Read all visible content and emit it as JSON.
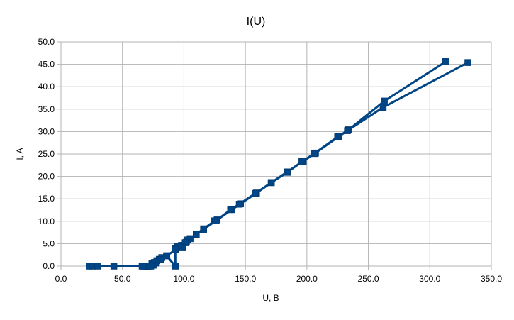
{
  "chart_data": {
    "type": "scatter",
    "title": "I(U)",
    "xlabel": "U, B",
    "ylabel": "I, A",
    "xlim": [
      0,
      350
    ],
    "ylim": [
      0,
      50
    ],
    "x_ticks": [
      "0.0",
      "50.0",
      "100.0",
      "150.0",
      "200.0",
      "250.0",
      "300.0",
      "350.0"
    ],
    "y_ticks": [
      "0.0",
      "5.0",
      "10.0",
      "15.0",
      "20.0",
      "25.0",
      "30.0",
      "35.0",
      "40.0",
      "45.0",
      "50.0"
    ],
    "grid": true,
    "legend": "none",
    "color": "#004586",
    "marker": "square",
    "series": [
      {
        "x": [
          23,
          26,
          30,
          43,
          66,
          68,
          70,
          72,
          74,
          76,
          78,
          80,
          82,
          86,
          93,
          93,
          96,
          98,
          102,
          105,
          110,
          116,
          125,
          127,
          139,
          146,
          159,
          171,
          184,
          197,
          207,
          226,
          234,
          263,
          313
        ],
        "y": [
          0.0,
          0.0,
          0.0,
          0.0,
          0.0,
          0.0,
          0.0,
          0.0,
          0.5,
          0.8,
          1.2,
          1.5,
          1.9,
          2.3,
          0.0,
          3.9,
          4.4,
          4.6,
          5.3,
          6.1,
          7.1,
          8.3,
          10.1,
          10.3,
          12.6,
          13.9,
          16.3,
          18.6,
          21.0,
          23.4,
          25.2,
          28.9,
          30.4,
          36.8,
          45.6
        ]
      },
      {
        "x": [
          331,
          262,
          233,
          225,
          206,
          196,
          184,
          171,
          158,
          145,
          138,
          126,
          116,
          110,
          103,
          101,
          99,
          95,
          93,
          86,
          81,
          77,
          75,
          73,
          70,
          67
        ],
        "y": [
          45.4,
          35.4,
          30.2,
          28.8,
          25.1,
          23.3,
          20.9,
          18.6,
          16.2,
          13.8,
          12.6,
          10.1,
          8.2,
          7.1,
          5.8,
          5.2,
          4.1,
          4.3,
          3.6,
          2.3,
          1.4,
          0.7,
          0.2,
          0.0,
          0.0,
          0.0
        ]
      }
    ]
  }
}
